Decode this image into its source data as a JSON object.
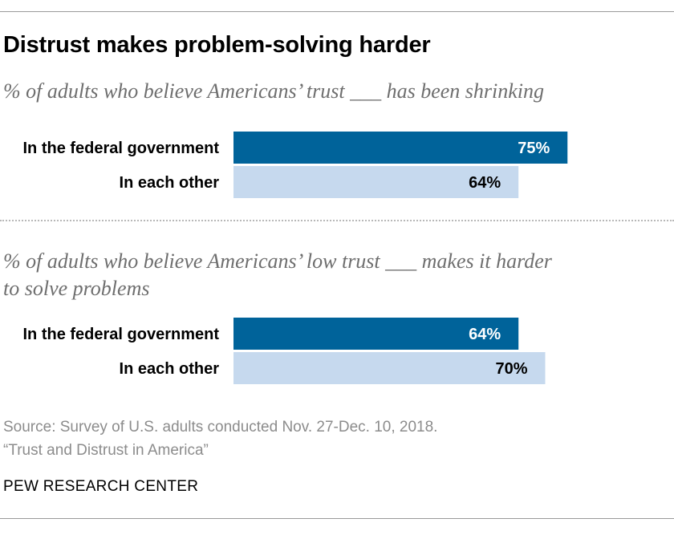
{
  "chart_data": {
    "type": "bar",
    "title": "Distrust makes problem-solving harder",
    "value_format": "{v}%",
    "panels": [
      {
        "subtitle_lines": [
          "% of adults who believe Americans’ trust ___ has been shrinking"
        ],
        "categories": [
          "In the federal government",
          "In each other"
        ],
        "values": [
          75,
          64
        ],
        "colors": [
          "#00639a",
          "#c6d9ee"
        ],
        "label_colors": [
          "#ffffff",
          "#000000"
        ]
      },
      {
        "subtitle_lines": [
          "% of adults who believe Americans’ low trust ___ makes it harder",
          "to solve problems"
        ],
        "categories": [
          "In the federal government",
          "In each other"
        ],
        "values": [
          64,
          70
        ],
        "colors": [
          "#00639a",
          "#c6d9ee"
        ],
        "label_colors": [
          "#ffffff",
          "#000000"
        ]
      }
    ]
  },
  "source_lines": [
    "Source: Survey of U.S. adults conducted Nov. 27-Dec. 10, 2018.",
    "“Trust and Distrust in America”"
  ],
  "brand": "PEW RESEARCH CENTER"
}
